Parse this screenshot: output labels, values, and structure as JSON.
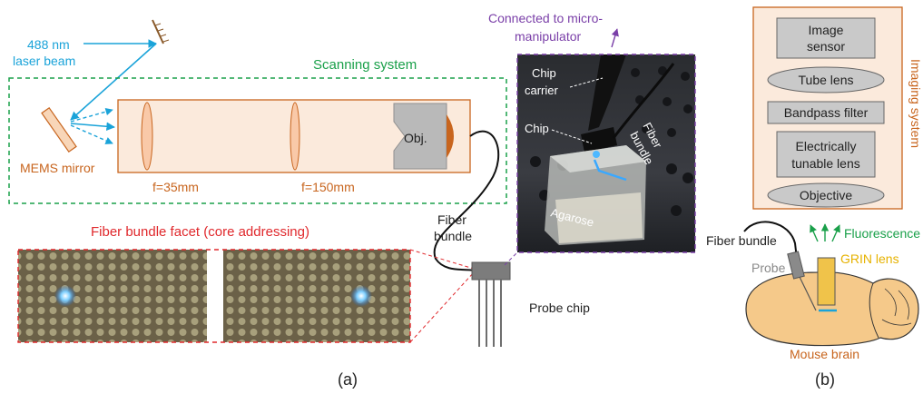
{
  "panel_a": {
    "laser_label_1": "488 nm",
    "laser_label_2": "laser beam",
    "scanning_system": "Scanning system",
    "mems_mirror": "MEMS mirror",
    "lens1": "f=35mm",
    "lens2": "f=150mm",
    "objective": "Obj.",
    "fiber_bundle_1": "Fiber",
    "fiber_bundle_2": "bundle",
    "facet_title": "Fiber bundle facet (core addressing)",
    "connected_1": "Connected to micro-",
    "connected_2": "manipulator",
    "chip_carrier_1": "Chip",
    "chip_carrier_2": "carrier",
    "chip": "Chip",
    "photo_fiber_1": "Fiber",
    "photo_fiber_2": "bundle",
    "agarose": "Agarose",
    "probe_chip": "Probe chip",
    "caption": "(a)"
  },
  "panel_b": {
    "image_sensor_1": "Image",
    "image_sensor_2": "sensor",
    "tube_lens": "Tube lens",
    "bandpass": "Bandpass filter",
    "etl_1": "Electrically",
    "etl_2": "tunable lens",
    "objective": "Objective",
    "imaging_system": "Imaging system",
    "fiber_bundle": "Fiber bundle",
    "fluorescence": "Fluorescence",
    "probe": "Probe",
    "grin_lens": "GRIN lens",
    "mouse_brain": "Mouse brain",
    "caption": "(b)"
  },
  "colors": {
    "laser": "#1aa3d9",
    "scanning_border": "#1aa04a",
    "optics": "#c8651e",
    "facet": "#e0282c",
    "photo_border": "#7a3fa8",
    "fluorescence": "#1aa04a",
    "grin": "#e6b200",
    "brain": "#f5c98a"
  }
}
